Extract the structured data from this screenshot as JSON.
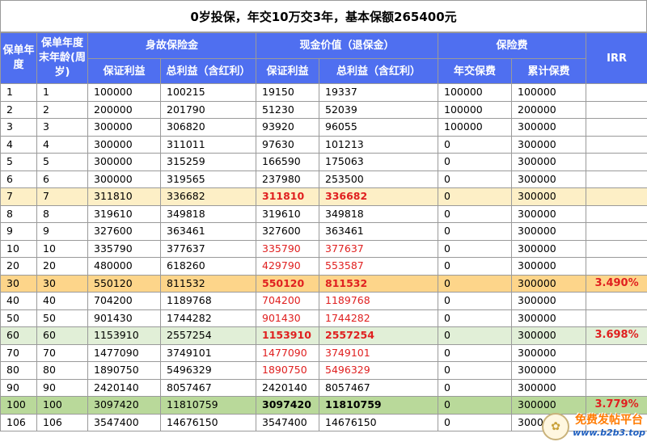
{
  "title": "0岁投保，年交10万交3年，基本保额265400元",
  "headers": {
    "policy_year": "保单年度",
    "age": "保单年度末年龄(周岁)",
    "death_benefit": "身故保险金",
    "cash_value": "现金价值（退保金）",
    "premium": "保险费",
    "irr": "IRR",
    "guaranteed": "保证利益",
    "total": "总利益（含红利）",
    "guaranteed2": "保证利益",
    "total2": "总利益（含红利）",
    "annual_premium": "年交保费",
    "cum_premium": "累计保费"
  },
  "rows": [
    {
      "year": "1",
      "age": "1",
      "db_g": "100000",
      "db_t": "100215",
      "cv_g": "19150",
      "cv_t": "19337",
      "ap": "100000",
      "cp": "100000",
      "irr": ""
    },
    {
      "year": "2",
      "age": "2",
      "db_g": "200000",
      "db_t": "201790",
      "cv_g": "51230",
      "cv_t": "52039",
      "ap": "100000",
      "cp": "200000",
      "irr": ""
    },
    {
      "year": "3",
      "age": "3",
      "db_g": "300000",
      "db_t": "306820",
      "cv_g": "93920",
      "cv_t": "96055",
      "ap": "100000",
      "cp": "300000",
      "irr": ""
    },
    {
      "year": "4",
      "age": "4",
      "db_g": "300000",
      "db_t": "311011",
      "cv_g": "97630",
      "cv_t": "101213",
      "ap": "0",
      "cp": "300000",
      "irr": ""
    },
    {
      "year": "5",
      "age": "5",
      "db_g": "300000",
      "db_t": "315259",
      "cv_g": "166590",
      "cv_t": "175063",
      "ap": "0",
      "cp": "300000",
      "irr": ""
    },
    {
      "year": "6",
      "age": "6",
      "db_g": "300000",
      "db_t": "319565",
      "cv_g": "237980",
      "cv_t": "253500",
      "ap": "0",
      "cp": "300000",
      "irr": ""
    },
    {
      "year": "7",
      "age": "7",
      "db_g": "311810",
      "db_t": "336682",
      "cv_g": "311810",
      "cv_t": "336682",
      "ap": "0",
      "cp": "300000",
      "irr": ""
    },
    {
      "year": "8",
      "age": "8",
      "db_g": "319610",
      "db_t": "349818",
      "cv_g": "319610",
      "cv_t": "349818",
      "ap": "0",
      "cp": "300000",
      "irr": ""
    },
    {
      "year": "9",
      "age": "9",
      "db_g": "327600",
      "db_t": "363461",
      "cv_g": "327600",
      "cv_t": "363461",
      "ap": "0",
      "cp": "300000",
      "irr": ""
    },
    {
      "year": "10",
      "age": "10",
      "db_g": "335790",
      "db_t": "377637",
      "cv_g": "335790",
      "cv_t": "377637",
      "ap": "0",
      "cp": "300000",
      "irr": ""
    },
    {
      "year": "20",
      "age": "20",
      "db_g": "480000",
      "db_t": "618260",
      "cv_g": "429790",
      "cv_t": "553587",
      "ap": "0",
      "cp": "300000",
      "irr": ""
    },
    {
      "year": "30",
      "age": "30",
      "db_g": "550120",
      "db_t": "811532",
      "cv_g": "550120",
      "cv_t": "811532",
      "ap": "0",
      "cp": "300000",
      "irr": "3.490%"
    },
    {
      "year": "40",
      "age": "40",
      "db_g": "704200",
      "db_t": "1189768",
      "cv_g": "704200",
      "cv_t": "1189768",
      "ap": "0",
      "cp": "300000",
      "irr": ""
    },
    {
      "year": "50",
      "age": "50",
      "db_g": "901430",
      "db_t": "1744282",
      "cv_g": "901430",
      "cv_t": "1744282",
      "ap": "0",
      "cp": "300000",
      "irr": ""
    },
    {
      "year": "60",
      "age": "60",
      "db_g": "1153910",
      "db_t": "2557254",
      "cv_g": "1153910",
      "cv_t": "2557254",
      "ap": "0",
      "cp": "300000",
      "irr": "3.698%"
    },
    {
      "year": "70",
      "age": "70",
      "db_g": "1477090",
      "db_t": "3749101",
      "cv_g": "1477090",
      "cv_t": "3749101",
      "ap": "0",
      "cp": "300000",
      "irr": ""
    },
    {
      "year": "80",
      "age": "80",
      "db_g": "1890750",
      "db_t": "5496329",
      "cv_g": "1890750",
      "cv_t": "5496329",
      "ap": "0",
      "cp": "300000",
      "irr": ""
    },
    {
      "year": "90",
      "age": "90",
      "db_g": "2420140",
      "db_t": "8057467",
      "cv_g": "2420140",
      "cv_t": "8057467",
      "ap": "0",
      "cp": "300000",
      "irr": ""
    },
    {
      "year": "100",
      "age": "100",
      "db_g": "3097420",
      "db_t": "11810759",
      "cv_g": "3097420",
      "cv_t": "11810759",
      "ap": "0",
      "cp": "300000",
      "irr": "3.779%"
    },
    {
      "year": "106",
      "age": "106",
      "db_g": "3547400",
      "db_t": "14676150",
      "cv_g": "3547400",
      "cv_t": "14676150",
      "ap": "0",
      "cp": "300000",
      "irr": ""
    }
  ],
  "row_styles": {
    "7": "hl-yellow",
    "30": "hl-orange",
    "60": "hl-green",
    "100": "hl-green2"
  },
  "red_cv_rows": [
    "7",
    "10",
    "20",
    "30",
    "40",
    "50",
    "60",
    "70",
    "80"
  ],
  "bold_cv_rows": [
    "7",
    "30",
    "60",
    "100"
  ],
  "watermark": {
    "main": "免费发帖平台",
    "sub": "www.b2b3.top",
    "logo": "✿"
  },
  "colors": {
    "header_bg": "#4f6ff0",
    "red": "#e02020",
    "yellow": "#fdefc6",
    "orange": "#fdd58a",
    "green": "#e1efd7",
    "green_dark": "#b9d99a"
  }
}
